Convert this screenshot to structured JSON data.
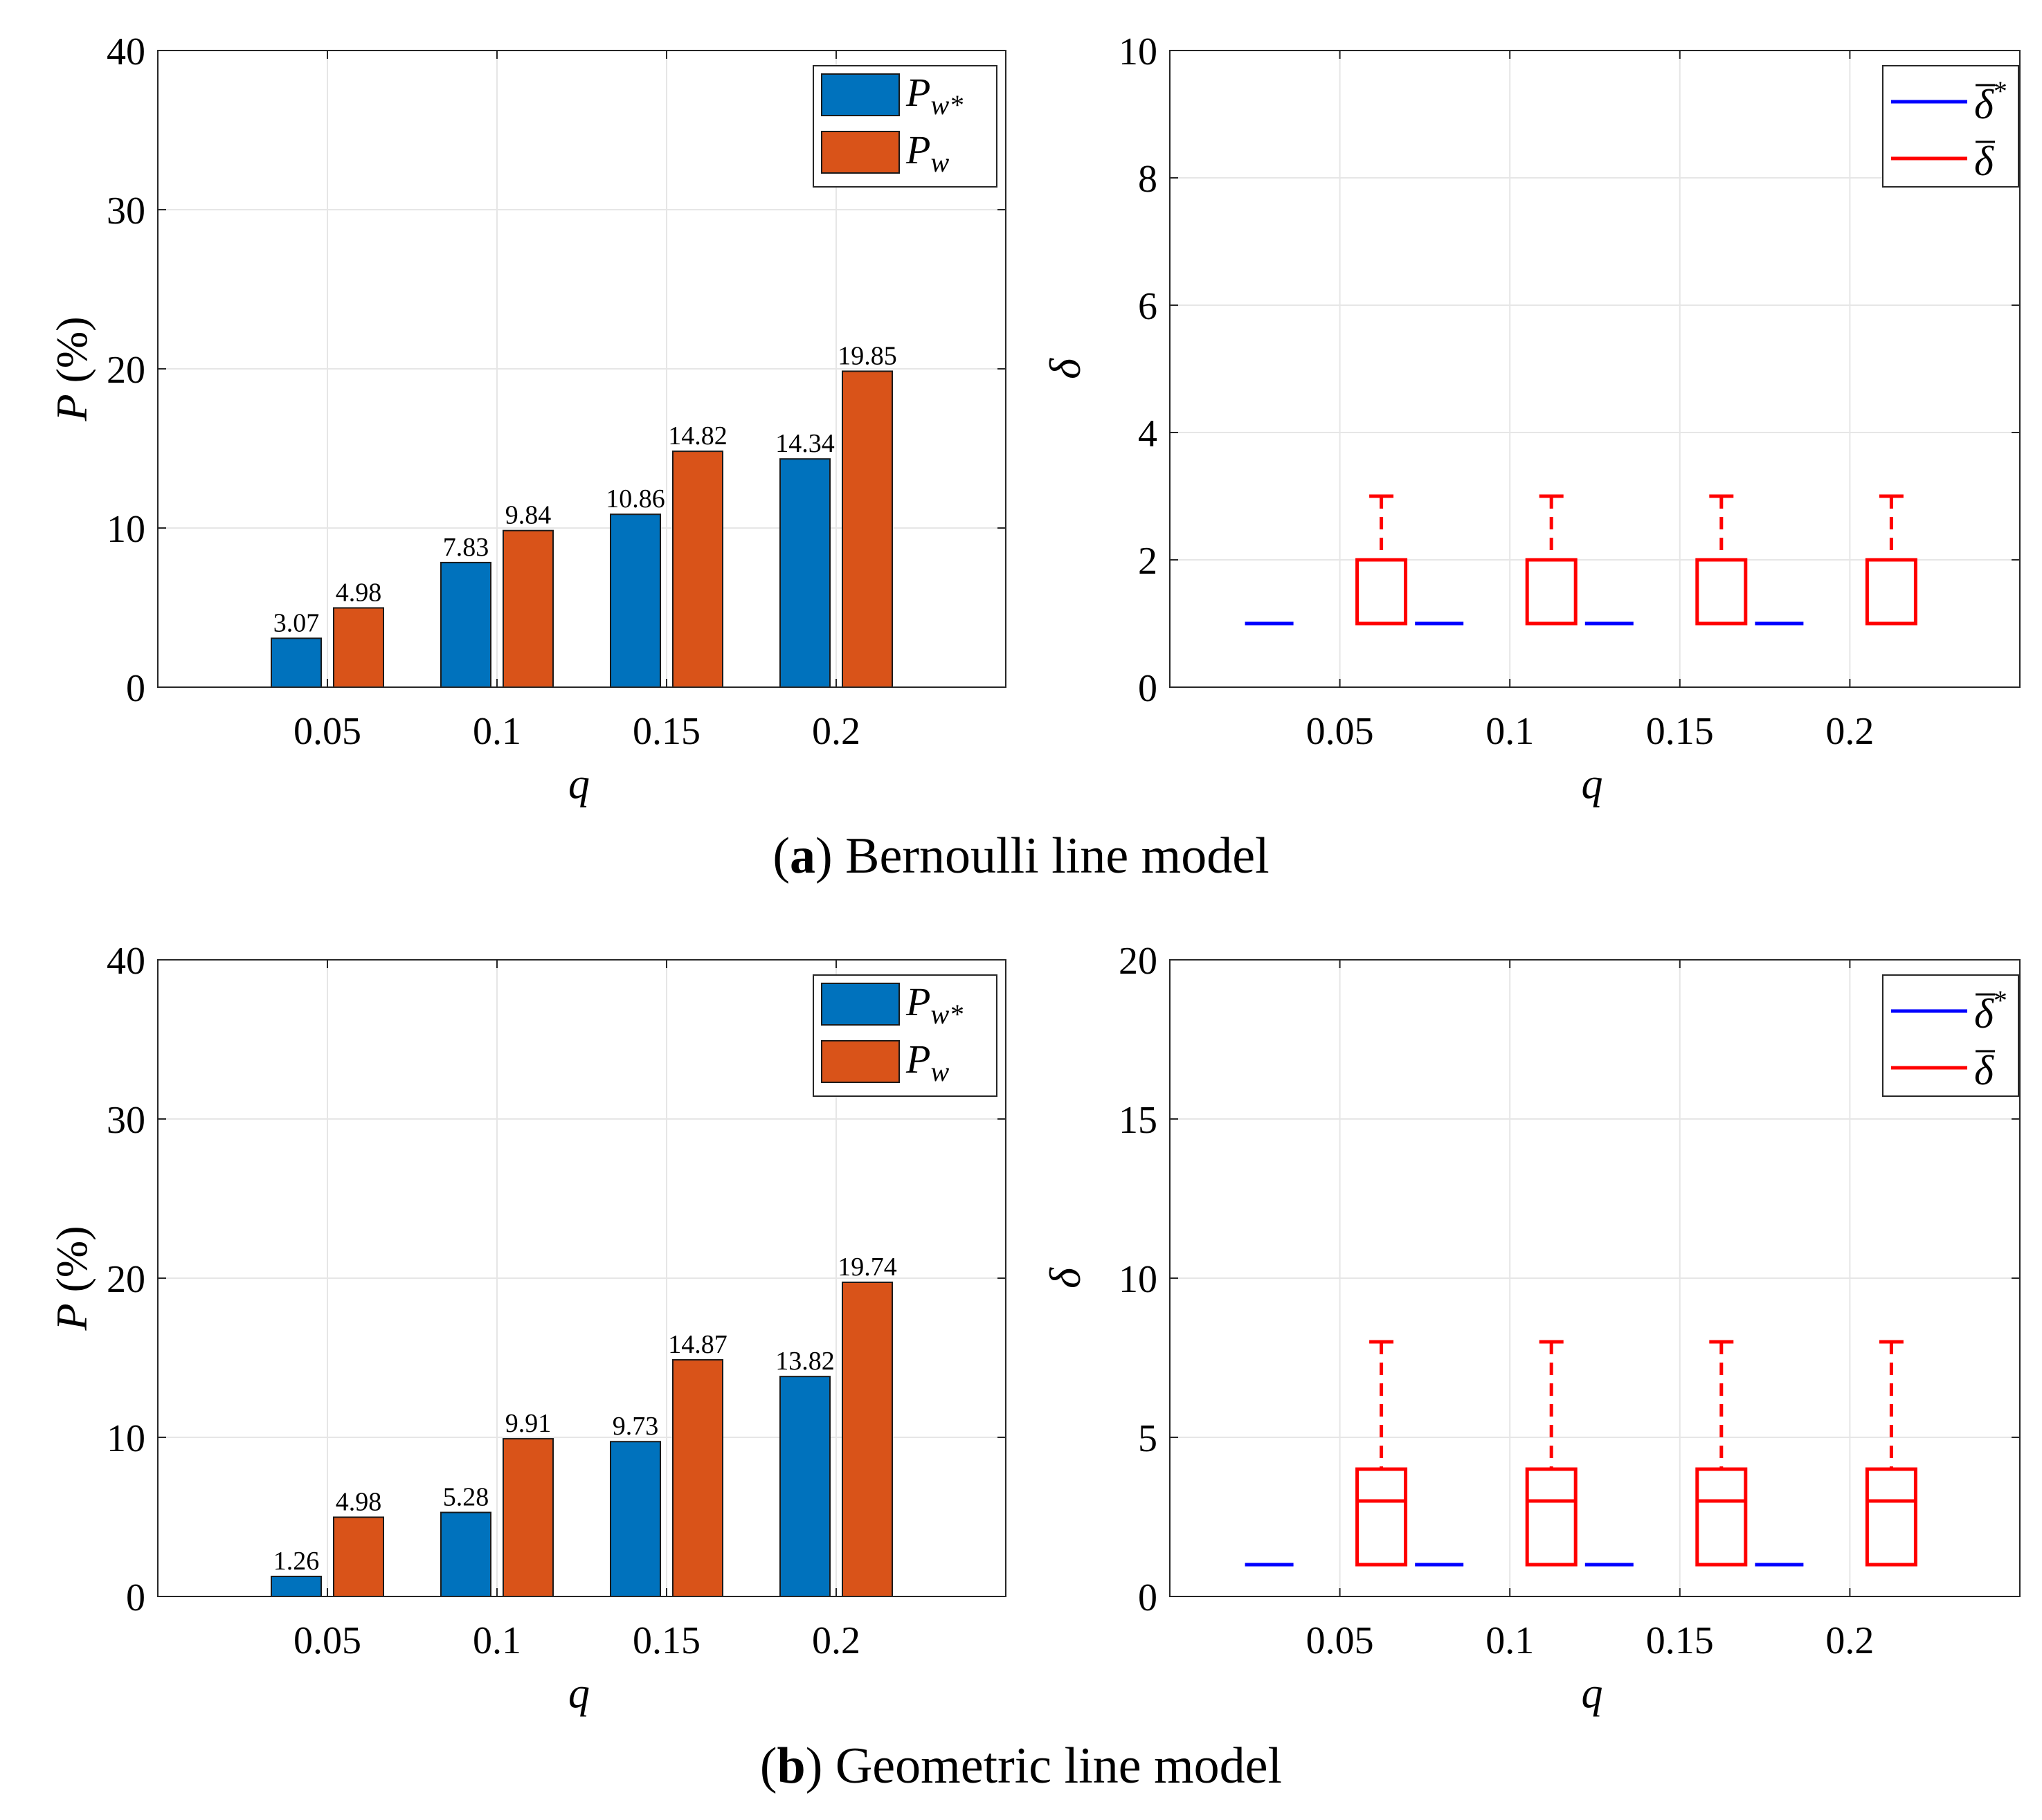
{
  "captions": [
    {
      "label": "a",
      "text": "Bernoulli line model"
    },
    {
      "label": "b",
      "text": "Geometric line model"
    }
  ],
  "colors": {
    "pw_star": "#0072BD",
    "pw": "#D95319",
    "delta_star": "#0000FF",
    "delta": "#FF0000"
  },
  "chart_data": [
    {
      "id": "a-left",
      "type": "bar",
      "categories": [
        "0.05",
        "0.1",
        "0.15",
        "0.2"
      ],
      "series": [
        {
          "name": "P_w*",
          "legend": "P",
          "sub": "w*",
          "color": "#0072BD",
          "values": [
            3.07,
            7.83,
            10.86,
            14.34
          ],
          "labels": [
            "3.07",
            "7.83",
            "10.86",
            "14.34"
          ]
        },
        {
          "name": "P_w",
          "legend": "P",
          "sub": "w",
          "color": "#D95319",
          "values": [
            4.98,
            9.84,
            14.82,
            19.85
          ],
          "labels": [
            "4.98",
            "9.84",
            "14.82",
            "19.85"
          ]
        }
      ],
      "xlabel": "q",
      "ylabel_var": "P",
      "ylabel_unit": "(%)",
      "ylim": [
        0,
        40
      ],
      "yticks": [
        0,
        10,
        20,
        30,
        40
      ],
      "grid": true,
      "legend_position": "top-right"
    },
    {
      "id": "a-right",
      "type": "box",
      "categories": [
        "0.05",
        "0.1",
        "0.15",
        "0.2"
      ],
      "series": [
        {
          "name": "delta_bar_star",
          "legend": "δ",
          "sup": "*",
          "color": "#0000FF",
          "values": [
            1,
            1,
            1,
            1
          ]
        },
        {
          "name": "delta_bar",
          "legend": "δ",
          "sup": "",
          "color": "#FF0000",
          "boxes": [
            {
              "min": 1,
              "q1": 1,
              "median": 1,
              "q3": 2,
              "max": 3
            },
            {
              "min": 1,
              "q1": 1,
              "median": 1,
              "q3": 2,
              "max": 3
            },
            {
              "min": 1,
              "q1": 1,
              "median": 1,
              "q3": 2,
              "max": 3
            },
            {
              "min": 1,
              "q1": 1,
              "median": 1,
              "q3": 2,
              "max": 3
            }
          ]
        }
      ],
      "xlabel": "q",
      "ylabel": "δ",
      "ylim": [
        0,
        10
      ],
      "yticks": [
        0,
        2,
        4,
        6,
        8,
        10
      ],
      "grid": true,
      "legend_position": "top-right"
    },
    {
      "id": "b-left",
      "type": "bar",
      "categories": [
        "0.05",
        "0.1",
        "0.15",
        "0.2"
      ],
      "series": [
        {
          "name": "P_w*",
          "legend": "P",
          "sub": "w*",
          "color": "#0072BD",
          "values": [
            1.26,
            5.28,
            9.73,
            13.82
          ],
          "labels": [
            "1.26",
            "5.28",
            "9.73",
            "13.82"
          ]
        },
        {
          "name": "P_w",
          "legend": "P",
          "sub": "w",
          "color": "#D95319",
          "values": [
            4.98,
            9.91,
            14.87,
            19.74
          ],
          "labels": [
            "4.98",
            "9.91",
            "14.87",
            "19.74"
          ]
        }
      ],
      "xlabel": "q",
      "ylabel_var": "P",
      "ylabel_unit": "(%)",
      "ylim": [
        0,
        40
      ],
      "yticks": [
        0,
        10,
        20,
        30,
        40
      ],
      "grid": true,
      "legend_position": "top-right"
    },
    {
      "id": "b-right",
      "type": "box",
      "categories": [
        "0.05",
        "0.1",
        "0.15",
        "0.2"
      ],
      "series": [
        {
          "name": "delta_bar_star",
          "legend": "δ",
          "sup": "*",
          "color": "#0000FF",
          "values": [
            1,
            1,
            1,
            1
          ]
        },
        {
          "name": "delta_bar",
          "legend": "δ",
          "sup": "",
          "color": "#FF0000",
          "boxes": [
            {
              "min": 1,
              "q1": 1,
              "median": 3,
              "q3": 4,
              "max": 8
            },
            {
              "min": 1,
              "q1": 1,
              "median": 3,
              "q3": 4,
              "max": 8
            },
            {
              "min": 1,
              "q1": 1,
              "median": 3,
              "q3": 4,
              "max": 8
            },
            {
              "min": 1,
              "q1": 1,
              "median": 3,
              "q3": 4,
              "max": 8
            }
          ]
        }
      ],
      "xlabel": "q",
      "ylabel": "δ",
      "ylim": [
        0,
        20
      ],
      "yticks": [
        0,
        5,
        10,
        15,
        20
      ],
      "grid": true,
      "legend_position": "top-right"
    }
  ]
}
